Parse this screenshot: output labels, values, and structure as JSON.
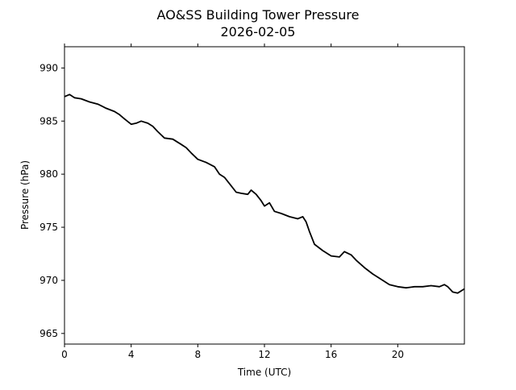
{
  "chart_data": {
    "type": "line",
    "title": "AO&SS Building Tower Pressure",
    "subtitle": "2026-02-05",
    "xlabel": "Time (UTC)",
    "ylabel": "Pressure (hPa)",
    "xlim": [
      0,
      24
    ],
    "ylim": [
      964.0,
      992.0
    ],
    "xticks": [
      0,
      4,
      8,
      12,
      16,
      20
    ],
    "xtick_labels": [
      "0",
      "4",
      "8",
      "12",
      "16",
      "20"
    ],
    "yticks": [
      965,
      970,
      975,
      980,
      985,
      990
    ],
    "ytick_labels": [
      "965",
      "970",
      "975",
      "980",
      "985",
      "990"
    ],
    "grid": false,
    "series": [
      {
        "name": "Pressure",
        "color": "#000000",
        "x": [
          0,
          0.3,
          0.6,
          1,
          1.5,
          2,
          2.5,
          3,
          3.3,
          3.6,
          4,
          4.3,
          4.6,
          5,
          5.3,
          5.6,
          6,
          6.5,
          7,
          7.3,
          7.6,
          8,
          8.5,
          9,
          9.3,
          9.6,
          10,
          10.3,
          10.6,
          11,
          11.2,
          11.5,
          11.8,
          12,
          12.3,
          12.6,
          13,
          13.5,
          14,
          14.3,
          14.5,
          14.7,
          15,
          15.5,
          16,
          16.5,
          16.8,
          17.2,
          17.5,
          18,
          18.5,
          19,
          19.5,
          20,
          20.5,
          21,
          21.5,
          22,
          22.5,
          22.8,
          23,
          23.3,
          23.6,
          24
        ],
        "y": [
          987.3,
          987.5,
          987.2,
          987.1,
          986.8,
          986.6,
          986.2,
          985.9,
          985.6,
          985.2,
          984.7,
          984.8,
          985.0,
          984.8,
          984.5,
          984.0,
          983.4,
          983.3,
          982.8,
          982.5,
          982.0,
          981.4,
          981.1,
          980.7,
          980.0,
          979.7,
          978.9,
          978.3,
          978.2,
          978.1,
          978.5,
          978.1,
          977.5,
          977.0,
          977.3,
          976.5,
          976.3,
          976.0,
          975.8,
          976.0,
          975.5,
          974.6,
          973.4,
          972.8,
          972.3,
          972.2,
          972.7,
          972.4,
          971.9,
          971.2,
          970.6,
          970.1,
          969.6,
          969.4,
          969.3,
          969.4,
          969.4,
          969.5,
          969.4,
          969.6,
          969.4,
          968.9,
          968.8,
          969.2
        ]
      }
    ]
  }
}
